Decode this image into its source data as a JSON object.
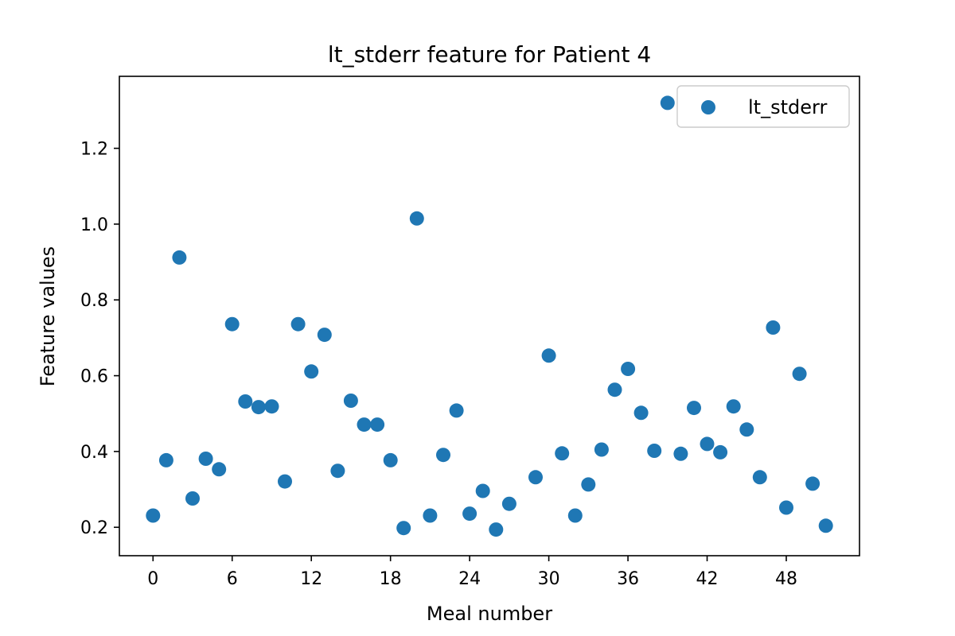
{
  "chart_data": {
    "type": "scatter",
    "title": "lt_stderr feature for Patient 4",
    "xlabel": "Meal number",
    "ylabel": "Feature values",
    "xlim": [
      -2.55,
      53.55
    ],
    "ylim": [
      0.125,
      1.39
    ],
    "xticks": [
      0,
      6,
      12,
      18,
      24,
      30,
      36,
      42,
      48
    ],
    "yticks": [
      0.2,
      0.4,
      0.6,
      0.8,
      1.0,
      1.2
    ],
    "ytick_labels": [
      "0.2",
      "0.4",
      "0.6",
      "0.8",
      "1.0",
      "1.2"
    ],
    "grid": false,
    "legend_position": "upper-right",
    "series": [
      {
        "name": "lt_stderr",
        "color": "#1f77b4",
        "x": [
          0,
          1,
          2,
          3,
          4,
          5,
          6,
          7,
          8,
          9,
          10,
          11,
          12,
          13,
          14,
          15,
          16,
          17,
          18,
          19,
          20,
          21,
          22,
          23,
          24,
          25,
          26,
          27,
          28,
          29,
          30,
          31,
          32,
          33,
          34,
          35,
          36,
          37,
          38,
          39,
          40,
          41,
          42,
          43,
          44,
          45,
          46,
          47,
          48,
          49,
          50,
          51
        ],
        "y": [
          0.231,
          0.377,
          0.912,
          0.276,
          0.381,
          0.353,
          0.736,
          0.532,
          0.517,
          0.519,
          0.321,
          0.736,
          0.611,
          0.708,
          0.349,
          0.534,
          0.471,
          0.471,
          0.377,
          0.198,
          1.015,
          0.231,
          0.391,
          0.508,
          0.236,
          0.296,
          0.194,
          0.262,
          null,
          0.332,
          0.653,
          0.395,
          0.231,
          0.313,
          0.405,
          0.563,
          0.618,
          0.502,
          0.402,
          1.32,
          0.394,
          0.515,
          0.42,
          0.398,
          0.519,
          0.458,
          0.332,
          0.727,
          0.252,
          0.605,
          0.315,
          0.204
        ]
      }
    ]
  }
}
